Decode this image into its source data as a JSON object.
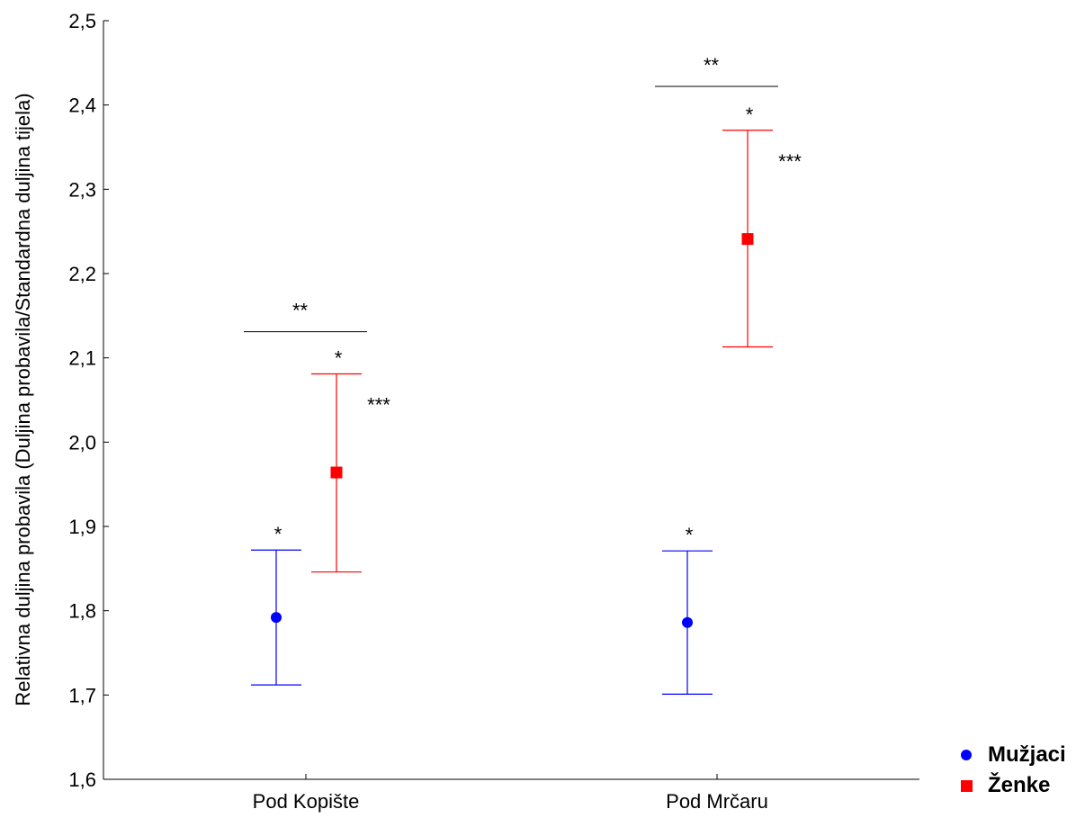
{
  "chart_data": {
    "type": "scatter",
    "ylabel": "Relativna duljina probavila (Duljina probavila/Standardna duljina tijela)",
    "xlabel": "",
    "ylim": [
      1.6,
      2.5
    ],
    "yticks": [
      "1,6",
      "1,7",
      "1,8",
      "1,9",
      "2,0",
      "2,1",
      "2,2",
      "2,3",
      "2,4",
      "2,5"
    ],
    "categories": [
      "Pod Kopište",
      "Pod Mrčaru"
    ],
    "grid": false,
    "legend_position": "bottom-right",
    "series": [
      {
        "name": "Mužjaci",
        "marker": "circle",
        "color": "#0000ff",
        "values": [
          1.792,
          1.786
        ],
        "lower": [
          1.712,
          1.701
        ],
        "upper": [
          1.872,
          1.871
        ],
        "labels": [
          "*",
          "*"
        ]
      },
      {
        "name": "Ženke",
        "marker": "square",
        "color": "#ff0000",
        "values": [
          1.964,
          2.241
        ],
        "lower": [
          1.846,
          2.113
        ],
        "upper": [
          2.081,
          2.37
        ],
        "labels": [
          "*",
          "*"
        ],
        "side_labels": [
          "***",
          "***"
        ]
      }
    ],
    "group_brackets": [
      {
        "label": "**",
        "y": 2.131
      },
      {
        "label": "**",
        "y": 2.422
      }
    ]
  }
}
